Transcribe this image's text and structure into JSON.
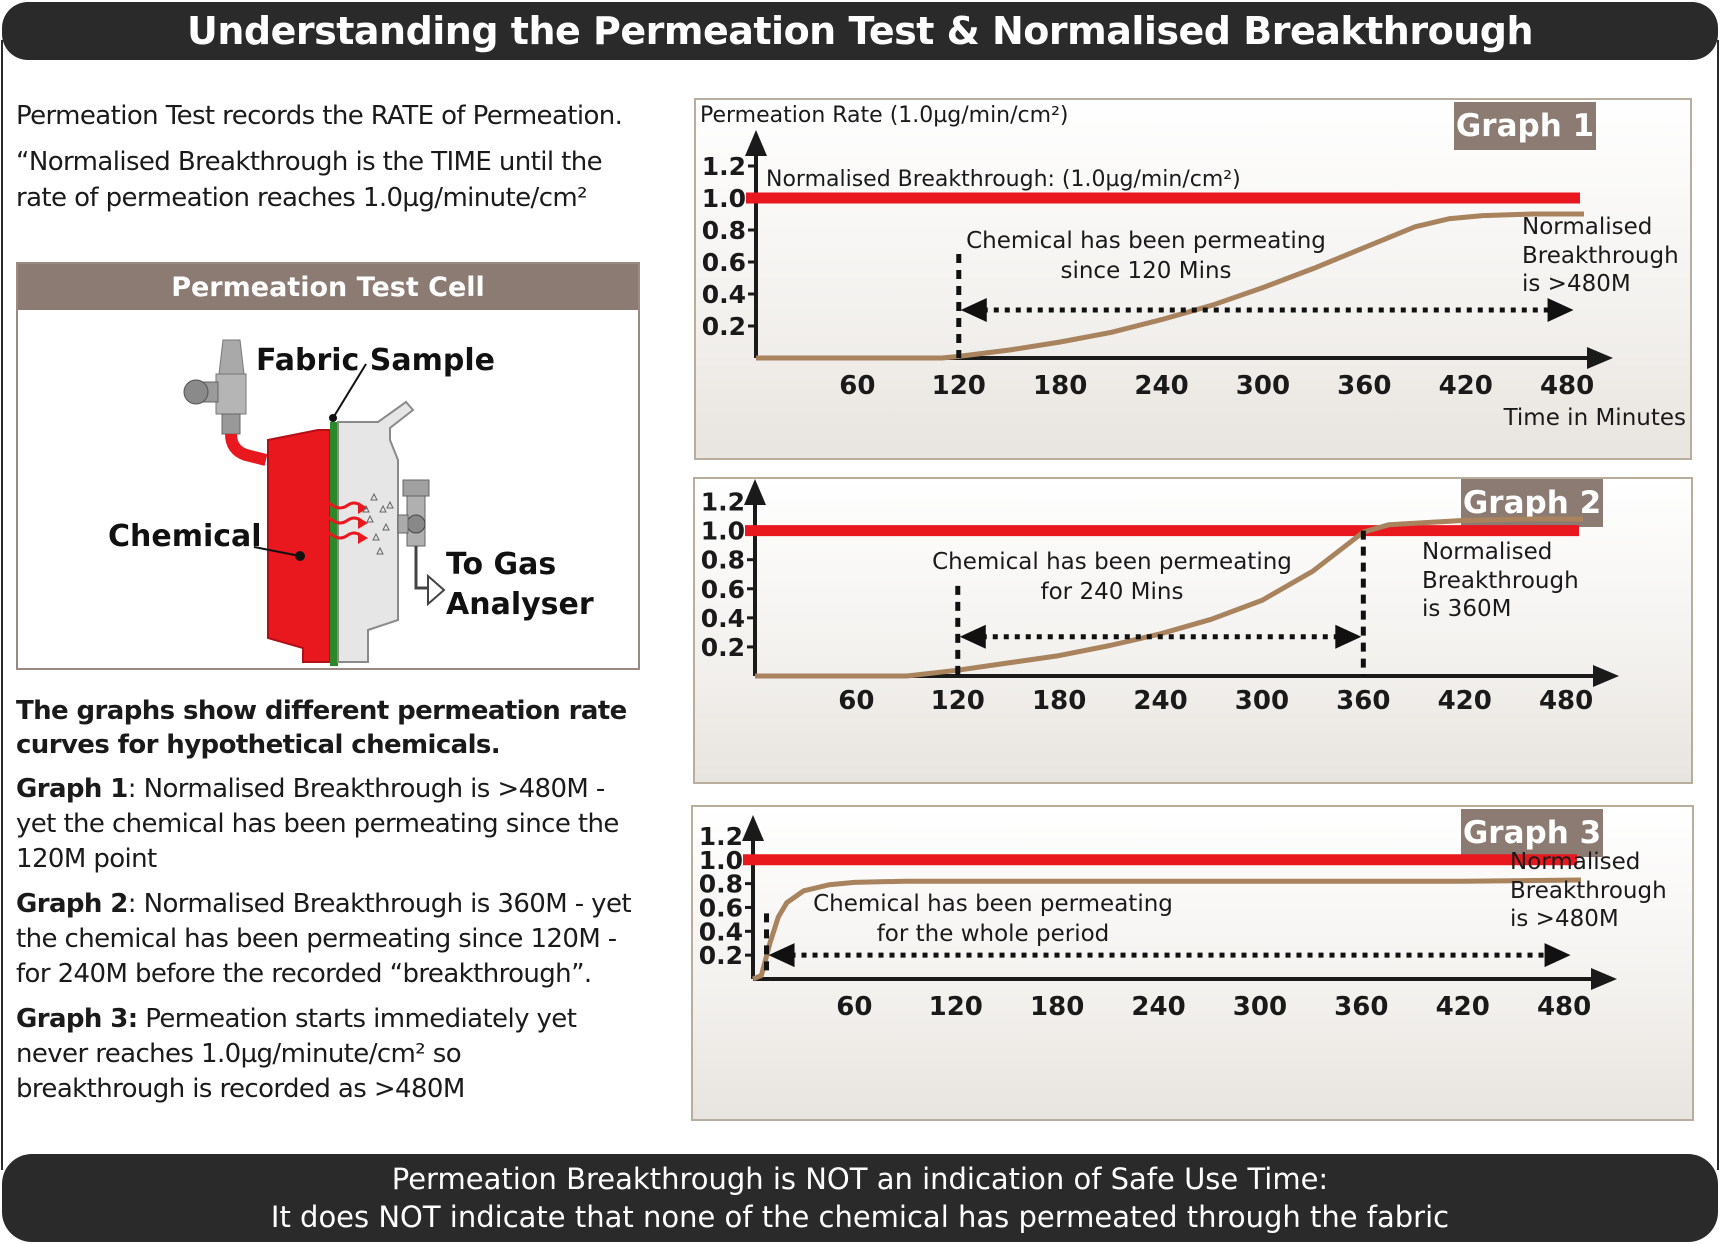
{
  "title": "Understanding the Permeation Test & Normalised Breakthrough",
  "intro": {
    "line1": "Permeation Test records the RATE of Permeation.",
    "line2": "“Normalised Breakthrough is the TIME until the",
    "line3": "rate of permeation reaches 1.0µg/minute/cm²"
  },
  "test_cell": {
    "header": "Permeation Test Cell",
    "label_fabric": "Fabric Sample",
    "label_chemical": "Chemical",
    "label_gas_1": "To Gas",
    "label_gas_2": "Analyser"
  },
  "explanation": {
    "lead_1": "The graphs show different permeation rate",
    "lead_2": "curves for hypothetical chemicals.",
    "g1_title": "Graph 1",
    "g1_text_1": ": Normalised Breakthrough is >480M -",
    "g1_text_2": "yet the chemical has been permeating since the",
    "g1_text_3": "120M point",
    "g2_title": "Graph 2",
    "g2_text_1": ": Normalised Breakthrough is 360M - yet",
    "g2_text_2": "the chemical has been permeating since 120M -",
    "g2_text_3": "for 240M before the recorded “breakthrough”.",
    "g3_title": "Graph 3:",
    "g3_text_1": " Permeation starts immediately yet",
    "g3_text_2": "never reaches 1.0µg/minute/cm² so",
    "g3_text_3": "breakthrough is recorded as >480M"
  },
  "footer": {
    "line1": "Permeation Breakthrough is NOT an indication of Safe Use Time:",
    "line2": "It does NOT indicate that none of the chemical has permeated through the fabric"
  },
  "colors": {
    "dark_banner": "#2a2a2a",
    "threshold_line": "#e8181e",
    "curve": "#a8835e",
    "badge": "#8c7b72",
    "chemical_red": "#e8181e",
    "fabric_green": "#2a8a2a"
  },
  "chart_data": [
    {
      "type": "line",
      "badge": "Graph 1",
      "ylabel": "Permeation Rate (1.0µg/min/cm²)",
      "xlabel": "Time in Minutes",
      "x_ticks": [
        60,
        120,
        180,
        240,
        300,
        360,
        420,
        480
      ],
      "y_ticks": [
        "1.2",
        "1.0",
        "0.8",
        "0.6",
        "0.4",
        "0.2"
      ],
      "y_values": [
        1.2,
        1.0,
        0.8,
        0.6,
        0.4,
        0.2
      ],
      "xlim": [
        0,
        490
      ],
      "ylim": [
        0,
        1.3
      ],
      "threshold": 1.0,
      "threshold_label": "Normalised Breakthrough: (1.0µg/min/cm²)",
      "series": [
        {
          "x": [
            0,
            60,
            110,
            120,
            150,
            180,
            210,
            240,
            270,
            300,
            330,
            360,
            390,
            410,
            430,
            460,
            490
          ],
          "values": [
            0.0,
            0.0,
            0.0,
            0.01,
            0.05,
            0.1,
            0.16,
            0.24,
            0.33,
            0.44,
            0.56,
            0.69,
            0.82,
            0.87,
            0.89,
            0.9,
            0.9
          ]
        }
      ],
      "marker_x": 120,
      "arrow_from": 120,
      "arrow_to": 485,
      "arrow_y": 0.3,
      "annotation_1": "Chemical has been permeating",
      "annotation_2": "since 120 Mins",
      "note_1": "Normalised",
      "note_2": "Breakthrough",
      "note_3": "is >480M"
    },
    {
      "type": "line",
      "badge": "Graph 2",
      "x_ticks": [
        60,
        120,
        180,
        240,
        300,
        360,
        420,
        480
      ],
      "y_ticks": [
        "1.2",
        "1.0",
        "0.8",
        "0.6",
        "0.4",
        "0.2"
      ],
      "y_values": [
        1.2,
        1.0,
        0.8,
        0.6,
        0.4,
        0.2
      ],
      "xlim": [
        0,
        490
      ],
      "ylim": [
        0,
        1.3
      ],
      "threshold": 1.0,
      "series": [
        {
          "x": [
            0,
            60,
            90,
            120,
            150,
            180,
            210,
            240,
            270,
            300,
            330,
            350,
            360,
            375,
            390,
            420,
            460,
            490
          ],
          "values": [
            0.0,
            0.0,
            0.0,
            0.04,
            0.09,
            0.14,
            0.21,
            0.29,
            0.39,
            0.52,
            0.72,
            0.9,
            0.99,
            1.04,
            1.05,
            1.07,
            1.08,
            1.08
          ]
        }
      ],
      "marker_x": [
        120,
        360
      ],
      "arrow_from": 120,
      "arrow_to": 360,
      "arrow_y": 0.27,
      "annotation_1": "Chemical has been permeating",
      "annotation_2": "for 240 Mins",
      "note_1": "Normalised",
      "note_2": "Breakthrough",
      "note_3": "is 360M"
    },
    {
      "type": "line",
      "badge": "Graph 3",
      "x_ticks": [
        60,
        120,
        180,
        240,
        300,
        360,
        420,
        480
      ],
      "y_ticks": [
        "1.2",
        "1.0",
        "0.8",
        "0.6",
        "0.4",
        "0.2"
      ],
      "y_values": [
        1.2,
        1.0,
        0.8,
        0.6,
        0.4,
        0.2
      ],
      "xlim": [
        0,
        490
      ],
      "ylim": [
        0,
        1.3
      ],
      "threshold": 1.0,
      "series": [
        {
          "x": [
            0,
            5,
            10,
            15,
            20,
            30,
            45,
            60,
            90,
            120,
            180,
            240,
            300,
            360,
            420,
            490
          ],
          "values": [
            0.0,
            0.03,
            0.3,
            0.52,
            0.64,
            0.74,
            0.79,
            0.81,
            0.82,
            0.82,
            0.82,
            0.82,
            0.82,
            0.82,
            0.82,
            0.83
          ]
        }
      ],
      "marker_x": 8,
      "arrow_from": 8,
      "arrow_to": 485,
      "arrow_y": 0.2,
      "annotation_1": "Chemical has been permeating",
      "annotation_2": "for the whole period",
      "note_1": "Normalised",
      "note_2": "Breakthrough",
      "note_3": "is >480M"
    }
  ]
}
